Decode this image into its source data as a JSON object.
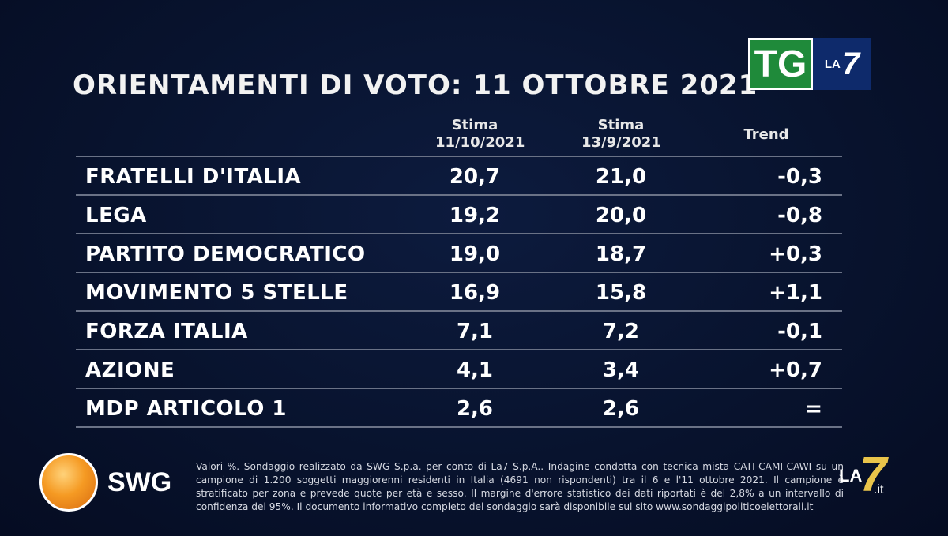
{
  "title": "ORIENTAMENTI DI VOTO: 11 OTTOBRE 2021",
  "logo_tg": {
    "tg": "TG",
    "la": "LA",
    "seven": "7"
  },
  "columns": {
    "c1_line1": "Stima",
    "c1_line2": "11/10/2021",
    "c2_line1": "Stima",
    "c2_line2": "13/9/2021",
    "c3": "Trend"
  },
  "rows": [
    {
      "party": "FRATELLI D'ITALIA",
      "v1": "20,7",
      "v2": "21,0",
      "trend": "-0,3"
    },
    {
      "party": "LEGA",
      "v1": "19,2",
      "v2": "20,0",
      "trend": "-0,8"
    },
    {
      "party": "PARTITO DEMOCRATICO",
      "v1": "19,0",
      "v2": "18,7",
      "trend": "+0,3"
    },
    {
      "party": "MOVIMENTO 5 STELLE",
      "v1": "16,9",
      "v2": "15,8",
      "trend": "+1,1"
    },
    {
      "party": "FORZA ITALIA",
      "v1": "7,1",
      "v2": "7,2",
      "trend": "-0,1"
    },
    {
      "party": "AZIONE",
      "v1": "4,1",
      "v2": "3,4",
      "trend": "+0,7"
    },
    {
      "party": "MDP ARTICOLO 1",
      "v1": "2,6",
      "v2": "2,6",
      "trend": "="
    }
  ],
  "swg_logo": "SWG",
  "note": "Valori %. Sondaggio realizzato da SWG S.p.a. per conto di La7 S.p.A.. Indagine condotta con tecnica mista CATI-CAMI-CAWI su un campione di 1.200 soggetti maggiorenni residenti in Italia (4691 non rispondenti) tra il 6 e l'11 ottobre 2021. Il campione è stratificato per zona e prevede quote per età e sesso. Il margine d'errore statistico dei dati riportati è del 2,8% a un intervallo di confidenza del 95%. Il documento informativo completo del sondaggio sarà disponibile sul sito www.sondaggipoliticoelettorali.it",
  "la7it": {
    "la": "LA",
    "seven": "7",
    "it": ".it"
  },
  "colors": {
    "background": "#08132e",
    "tg_green": "#1f8a3a",
    "la7_blue": "#0e2a6b",
    "swg_orange": "#f59a23",
    "la7_gold": "#e9c44a"
  }
}
